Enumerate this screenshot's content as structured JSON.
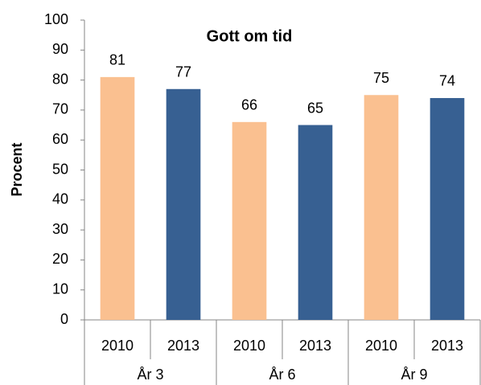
{
  "chart_data": {
    "type": "bar",
    "title": "Gott om tid",
    "y_label": "Procent",
    "categories": [
      "2010",
      "2013",
      "2010",
      "2013",
      "2010",
      "2013"
    ],
    "groups": [
      "År 3",
      "År 6",
      "År 9"
    ],
    "values": [
      81,
      77,
      66,
      65,
      75,
      74
    ],
    "colors": [
      "#fac090",
      "#376092",
      "#fac090",
      "#376092",
      "#fac090",
      "#376092"
    ],
    "ylim": [
      0,
      100
    ],
    "yticks": [
      0,
      10,
      20,
      30,
      40,
      50,
      60,
      70,
      80,
      90,
      100
    ],
    "grid": false
  }
}
